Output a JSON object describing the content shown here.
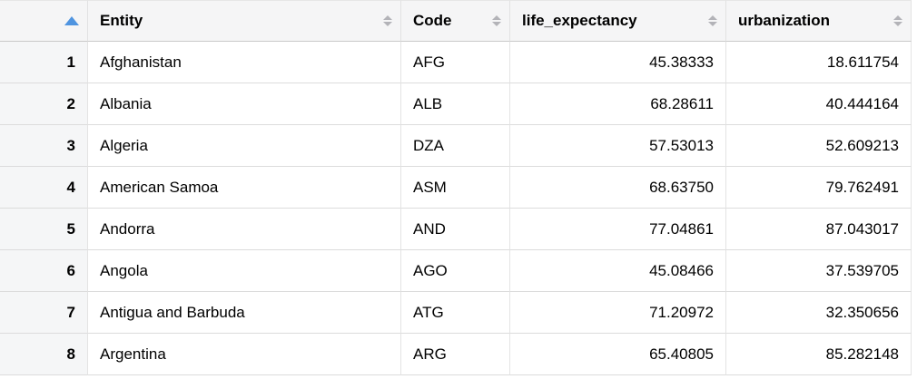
{
  "colors": {
    "active_sort_arrow": "#4f94e0",
    "inactive_sorter": "#b3b3b8",
    "header_background": "#f5f5f6",
    "row_number_background": "#f5f6f7",
    "row_border": "#dcdcdc",
    "column_border": "#e4e4e4"
  },
  "table": {
    "columns": {
      "row_index": "",
      "entity": "Entity",
      "code": "Code",
      "life_expectancy": "life_expectancy",
      "urbanization": "urbanization"
    },
    "sort": {
      "column": "row_index",
      "direction": "ascending"
    },
    "rows": [
      {
        "num": "1",
        "entity": "Afghanistan",
        "code": "AFG",
        "life_expectancy": "45.38333",
        "urbanization": "18.611754"
      },
      {
        "num": "2",
        "entity": "Albania",
        "code": "ALB",
        "life_expectancy": "68.28611",
        "urbanization": "40.444164"
      },
      {
        "num": "3",
        "entity": "Algeria",
        "code": "DZA",
        "life_expectancy": "57.53013",
        "urbanization": "52.609213"
      },
      {
        "num": "4",
        "entity": "American Samoa",
        "code": "ASM",
        "life_expectancy": "68.63750",
        "urbanization": "79.762491"
      },
      {
        "num": "5",
        "entity": "Andorra",
        "code": "AND",
        "life_expectancy": "77.04861",
        "urbanization": "87.043017"
      },
      {
        "num": "6",
        "entity": "Angola",
        "code": "AGO",
        "life_expectancy": "45.08466",
        "urbanization": "37.539705"
      },
      {
        "num": "7",
        "entity": "Antigua and Barbuda",
        "code": "ATG",
        "life_expectancy": "71.20972",
        "urbanization": "32.350656"
      },
      {
        "num": "8",
        "entity": "Argentina",
        "code": "ARG",
        "life_expectancy": "65.40805",
        "urbanization": "85.282148"
      }
    ]
  }
}
